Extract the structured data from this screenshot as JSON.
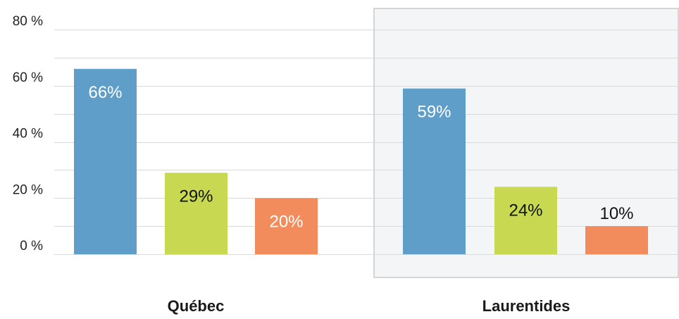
{
  "chart_data": {
    "type": "bar",
    "categories": [
      "Québec",
      "Laurentides"
    ],
    "highlighted_category": "Laurentides",
    "y_ticks": [
      {
        "value": 0,
        "label": "0 %"
      },
      {
        "value": 20,
        "label": "20 %"
      },
      {
        "value": 40,
        "label": "40 %"
      },
      {
        "value": 60,
        "label": "60 %"
      },
      {
        "value": 80,
        "label": "80 %"
      }
    ],
    "ylim": [
      0,
      80
    ],
    "minor_gridlines": true,
    "series": [
      {
        "values": [
          66,
          59
        ],
        "labels": [
          "66%",
          "59%"
        ],
        "color": "#5f9ec9",
        "label_color": "#ffffff"
      },
      {
        "values": [
          29,
          24
        ],
        "labels": [
          "29%",
          "24%"
        ],
        "color": "#c8d951",
        "label_color": "#111111"
      },
      {
        "values": [
          20,
          10
        ],
        "labels": [
          "20%",
          "10%"
        ],
        "color": "#f28c5c",
        "label_color": "#ffffff"
      }
    ],
    "highlight": {
      "fill": "#f4f5f6",
      "stroke": "#c8c8c8"
    },
    "gridline_color": "#d9d9d9",
    "title": "",
    "xlabel": "",
    "ylabel": "",
    "legend": "none"
  }
}
